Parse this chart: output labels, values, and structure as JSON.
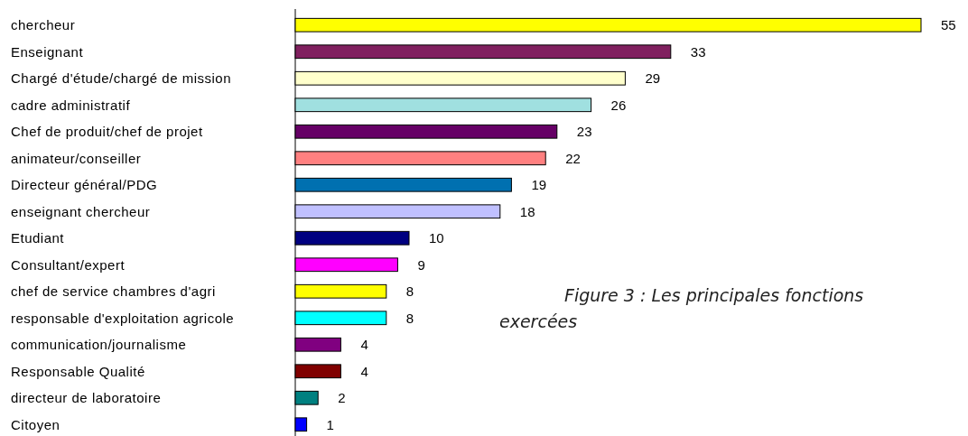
{
  "chart_data": {
    "type": "bar",
    "orientation": "horizontal",
    "data_labels": true,
    "categories": [
      "chercheur",
      "Enseignant",
      "Chargé d'étude/chargé de mission",
      "cadre administratif",
      "Chef de produit/chef de projet",
      "animateur/conseiller",
      "Directeur général/PDG",
      "enseignant chercheur",
      "Etudiant",
      "Consultant/expert",
      "chef de service chambres d'agri",
      "responsable d'exploitation agricole",
      "communication/journalisme",
      "Responsable Qualité",
      "directeur de laboratoire",
      "Citoyen"
    ],
    "values": [
      55,
      33,
      29,
      26,
      23,
      22,
      19,
      18,
      10,
      9,
      8,
      8,
      4,
      4,
      2,
      1
    ],
    "colors": [
      "#ffff00",
      "#80205f",
      "#ffffcc",
      "#a0e0e0",
      "#660066",
      "#ff8080",
      "#0070b0",
      "#c0c0ff",
      "#000080",
      "#ff00ff",
      "#ffff00",
      "#00ffff",
      "#800080",
      "#800000",
      "#008080",
      "#0000ff"
    ],
    "annotations": [
      "Figure 3 : Les principales fonctions exercées"
    ]
  }
}
